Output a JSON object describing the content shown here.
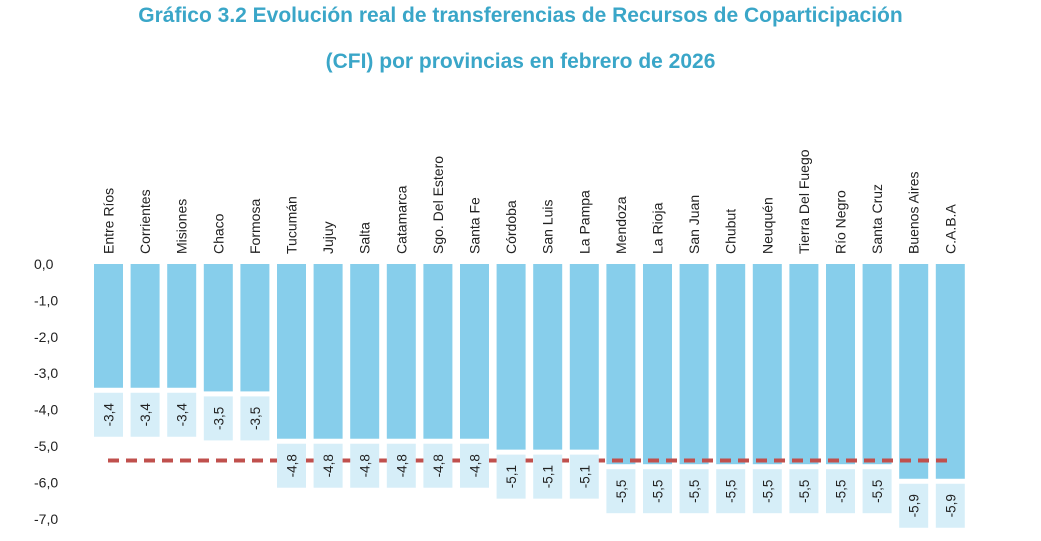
{
  "chart_data": {
    "type": "bar",
    "title_line1": "Gráfico 3.2 Evolución real de transferencias de Recursos de Coparticipación",
    "title_line2": "(CFI) por provincias en febrero de 2026",
    "categories": [
      "Entre Ríos",
      "Corrientes",
      "Misiones",
      "Chaco",
      "Formosa",
      "Tucumán",
      "Jujuy",
      "Salta",
      "Catamarca",
      "Sgo. Del Estero",
      "Santa Fe",
      "Córdoba",
      "San Luis",
      "La Pampa",
      "Mendoza",
      "La Rioja",
      "San Juan",
      "Chubut",
      "Neuquén",
      "Tierra Del Fuego",
      "Río Negro",
      "Santa Cruz",
      "Buenos Aires",
      "C.A.B.A"
    ],
    "values": [
      -3.4,
      -3.4,
      -3.4,
      -3.5,
      -3.5,
      -4.8,
      -4.8,
      -4.8,
      -4.8,
      -4.8,
      -4.8,
      -5.1,
      -5.1,
      -5.1,
      -5.5,
      -5.5,
      -5.5,
      -5.5,
      -5.5,
      -5.5,
      -5.5,
      -5.5,
      -5.9,
      -5.9
    ],
    "data_labels": [
      "-3,4",
      "-3,4",
      "-3,4",
      "-3,5",
      "-3,5",
      "-4,8",
      "-4,8",
      "-4,8",
      "-4,8",
      "-4,8",
      "-4,8",
      "-5,1",
      "-5,1",
      "-5,1",
      "-5,5",
      "-5,5",
      "-5,5",
      "-5,5",
      "-5,5",
      "-5,5",
      "-5,5",
      "-5,5",
      "-5,9",
      "-5,9"
    ],
    "average_line_value": -5.4,
    "y_ticks": [
      0,
      -1,
      -2,
      -3,
      -4,
      -5,
      -6,
      -7
    ],
    "y_tick_labels": [
      "0,0",
      "-1,0",
      "-2,0",
      "-3,0",
      "-4,0",
      "-5,0",
      "-6,0",
      "-7,0"
    ],
    "ylim": [
      -7,
      0
    ],
    "xlabel": "",
    "ylabel": "",
    "bar_color": "#87ceeb",
    "label_box_color": "#d6eef8",
    "average_line_color": "#c0504d",
    "title_color": "#3aa6c8"
  }
}
